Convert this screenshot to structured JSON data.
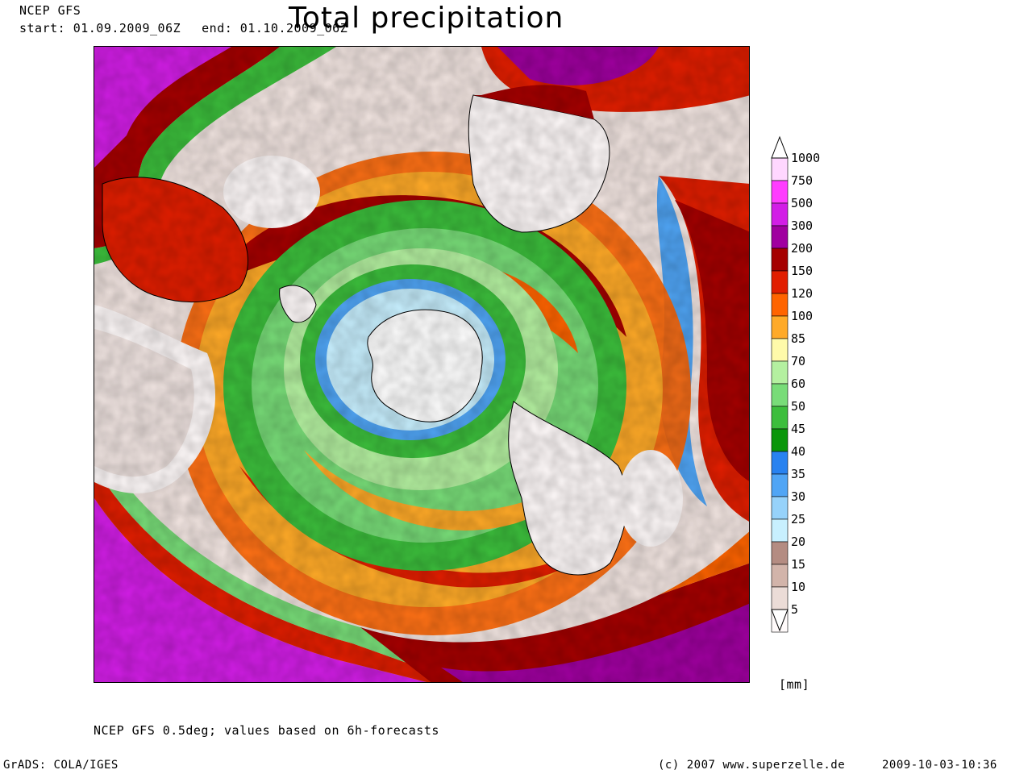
{
  "header": {
    "model": "NCEP GFS",
    "start": "start: 01.09.2009_06Z",
    "end": "end: 01.10.2009_06Z",
    "title": "Total precipitation"
  },
  "legend": {
    "unit": "[mm]",
    "classes": [
      {
        "label": "1000",
        "color": "#ffd7ff"
      },
      {
        "label": "750",
        "color": "#ff3cff"
      },
      {
        "label": "500",
        "color": "#d21ee6"
      },
      {
        "label": "300",
        "color": "#a000a0"
      },
      {
        "label": "200",
        "color": "#a50000"
      },
      {
        "label": "150",
        "color": "#e11e00"
      },
      {
        "label": "120",
        "color": "#ff6400"
      },
      {
        "label": "100",
        "color": "#ffaa28"
      },
      {
        "label": "85",
        "color": "#fffaaa"
      },
      {
        "label": "70",
        "color": "#b4f0a0"
      },
      {
        "label": "60",
        "color": "#78dc78"
      },
      {
        "label": "50",
        "color": "#3cbe3c"
      },
      {
        "label": "45",
        "color": "#0a960a"
      },
      {
        "label": "40",
        "color": "#2882f0"
      },
      {
        "label": "35",
        "color": "#50a5f5"
      },
      {
        "label": "30",
        "color": "#96d2fa"
      },
      {
        "label": "25",
        "color": "#c8f0ff"
      },
      {
        "label": "20",
        "color": "#b48c82"
      },
      {
        "label": "15",
        "color": "#d2b4aa"
      },
      {
        "label": "10",
        "color": "#ebdcd7"
      },
      {
        "label": "5",
        "color": "#fffafa"
      }
    ]
  },
  "footer": {
    "source_note": "NCEP GFS 0.5deg; values based on 6h-forecasts",
    "software": "GrADS: COLA/IGES",
    "copyright": "(c) 2007 www.superzelle.de",
    "timestamp": "2009-10-03-10:36"
  }
}
